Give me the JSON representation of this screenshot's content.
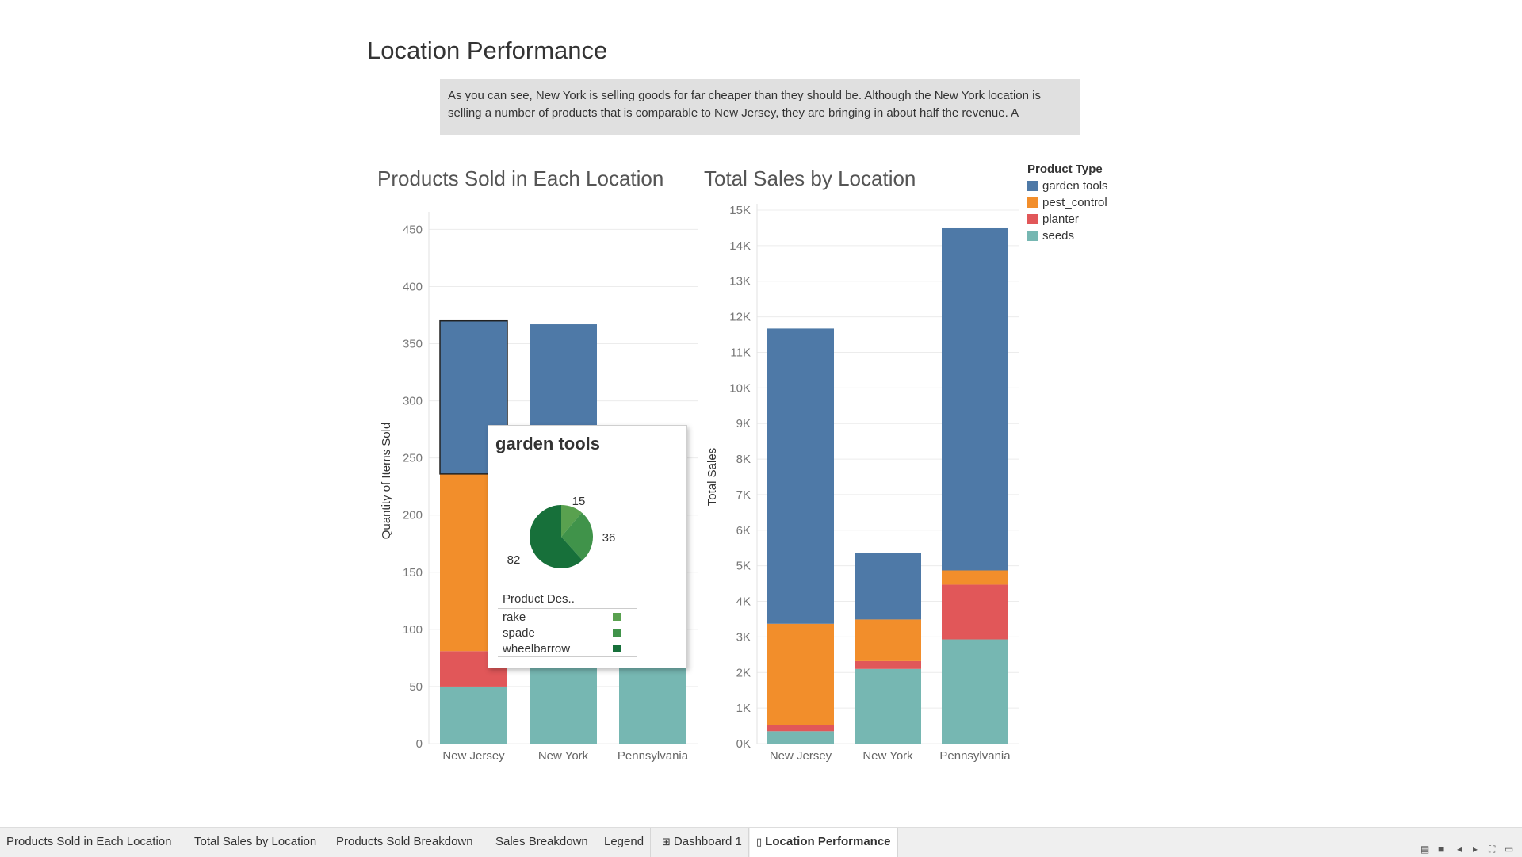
{
  "dashboard": {
    "title": "Location Performance",
    "caption": "As you can see, New York is selling goods for far cheaper than they should be. Although the New York location is selling a number of products that is comparable to New Jersey, they are bringing in about half the revenue. A"
  },
  "colors": {
    "garden tools": "#4e79a7",
    "pest_control": "#f28e2b",
    "planter": "#e15759",
    "seeds": "#76b7b2"
  },
  "legend": {
    "title": "Product Type",
    "items": [
      "garden tools",
      "pest_control",
      "planter",
      "seeds"
    ]
  },
  "chart_data": [
    {
      "type": "bar",
      "stacked": true,
      "title": "Products Sold in Each Location",
      "xlabel": "",
      "ylabel": "Quantity of Items Sold",
      "categories": [
        "New Jersey",
        "New York",
        "Pennsylvania"
      ],
      "ylim": [
        0,
        460
      ],
      "yticks": [
        0,
        50,
        100,
        150,
        200,
        250,
        300,
        350,
        400,
        450
      ],
      "ytick_labels": [
        "0",
        "50",
        "100",
        "150",
        "200",
        "250",
        "300",
        "350",
        "400",
        "450"
      ],
      "series": [
        {
          "name": "seeds",
          "values": [
            50,
            70,
            70
          ]
        },
        {
          "name": "planter",
          "values": [
            31,
            5,
            11
          ]
        },
        {
          "name": "pest_control",
          "values": [
            155,
            10,
            16
          ]
        },
        {
          "name": "garden tools",
          "values": [
            134,
            282,
            145
          ]
        }
      ],
      "highlighted": {
        "category": "New Jersey",
        "series": "garden tools"
      },
      "grid": true
    },
    {
      "type": "bar",
      "stacked": true,
      "title": "Total Sales by Location",
      "xlabel": "",
      "ylabel": "Total Sales",
      "categories": [
        "New Jersey",
        "New York",
        "Pennsylvania"
      ],
      "ylim": [
        0,
        15000
      ],
      "yticks": [
        0,
        1000,
        2000,
        3000,
        4000,
        5000,
        6000,
        7000,
        8000,
        9000,
        10000,
        11000,
        12000,
        13000,
        14000,
        15000
      ],
      "ytick_labels": [
        "0K",
        "1K",
        "2K",
        "3K",
        "4K",
        "5K",
        "6K",
        "7K",
        "8K",
        "9K",
        "10K",
        "11K",
        "12K",
        "13K",
        "14K",
        "15K"
      ],
      "series": [
        {
          "name": "seeds",
          "values": [
            350,
            2100,
            2930
          ]
        },
        {
          "name": "planter",
          "values": [
            180,
            220,
            1540
          ]
        },
        {
          "name": "pest_control",
          "values": [
            2840,
            1170,
            400
          ]
        },
        {
          "name": "garden tools",
          "values": [
            8300,
            1880,
            9640
          ]
        }
      ],
      "grid": true
    },
    {
      "type": "pie",
      "title": "garden tools",
      "categories": [
        "rake",
        "spade",
        "wheelbarrow"
      ],
      "values": [
        15,
        36,
        82
      ],
      "colors": [
        "#59a14f",
        "#40934a",
        "#17703a"
      ]
    }
  ],
  "tooltip": {
    "title": "garden tools",
    "legend_title": "Product Des..",
    "items": [
      {
        "label": "rake",
        "color": "#59a14f"
      },
      {
        "label": "spade",
        "color": "#40934a"
      },
      {
        "label": "wheelbarrow",
        "color": "#17703a"
      }
    ]
  },
  "tabs": [
    {
      "label": "Products Sold in Each Location",
      "icon": "",
      "active": false
    },
    {
      "label": "Total Sales by Location",
      "icon": "",
      "active": false
    },
    {
      "label": "Products Sold Breakdown",
      "icon": "",
      "active": false
    },
    {
      "label": "Sales Breakdown",
      "icon": "",
      "active": false
    },
    {
      "label": "Legend",
      "icon": "",
      "active": false
    },
    {
      "label": "Dashboard 1",
      "icon": "dashboard-icon",
      "active": false
    },
    {
      "label": "Location Performance",
      "icon": "story-icon",
      "active": true
    }
  ],
  "controls": [
    "grid-view-icon",
    "filmstrip-view-icon",
    "previous-icon",
    "next-icon",
    "fullscreen-icon",
    "presentation-icon"
  ]
}
